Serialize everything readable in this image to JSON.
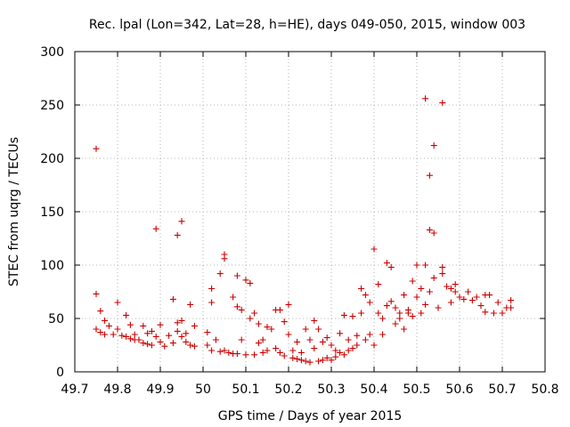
{
  "chart_data": {
    "type": "scatter",
    "title": "Rec. lpal (Lon=342, Lat=28, h=HE), days 049-050, 2015, window 003",
    "xlabel": "GPS time / Days of year 2015",
    "ylabel": "STEC from uqrg / TECUs",
    "xlim": [
      49.7,
      50.8
    ],
    "ylim": [
      0,
      300
    ],
    "xticks": [
      49.7,
      49.8,
      49.9,
      50.0,
      50.1,
      50.2,
      50.3,
      50.4,
      50.5,
      50.6,
      50.7,
      50.8
    ],
    "xtick_labels": [
      "49.7",
      "49.8",
      "49.9",
      "50",
      "50.1",
      "50.2",
      "50.3",
      "50.4",
      "50.5",
      "50.6",
      "50.7",
      "50.8"
    ],
    "yticks": [
      0,
      50,
      100,
      150,
      200,
      250,
      300
    ],
    "ytick_labels": [
      "0",
      "50",
      "100",
      "150",
      "200",
      "250",
      "300"
    ],
    "grid": true,
    "marker": "+",
    "series_color": "#cc0000",
    "points": [
      [
        49.75,
        209
      ],
      [
        49.75,
        73
      ],
      [
        49.75,
        40
      ],
      [
        49.76,
        57
      ],
      [
        49.76,
        37
      ],
      [
        49.77,
        48
      ],
      [
        49.77,
        35
      ],
      [
        49.78,
        43
      ],
      [
        49.79,
        35
      ],
      [
        49.8,
        65
      ],
      [
        49.8,
        40
      ],
      [
        49.81,
        34
      ],
      [
        49.82,
        53
      ],
      [
        49.82,
        33
      ],
      [
        49.83,
        44
      ],
      [
        49.83,
        31
      ],
      [
        49.84,
        35
      ],
      [
        49.84,
        30
      ],
      [
        49.85,
        30
      ],
      [
        49.86,
        43
      ],
      [
        49.86,
        27
      ],
      [
        49.87,
        36
      ],
      [
        49.87,
        26
      ],
      [
        49.88,
        38
      ],
      [
        49.88,
        25
      ],
      [
        49.89,
        134
      ],
      [
        49.89,
        33
      ],
      [
        49.9,
        44
      ],
      [
        49.9,
        28
      ],
      [
        49.91,
        24
      ],
      [
        49.92,
        34
      ],
      [
        49.93,
        68
      ],
      [
        49.93,
        27
      ],
      [
        49.94,
        128
      ],
      [
        49.94,
        46
      ],
      [
        49.94,
        38
      ],
      [
        49.95,
        141
      ],
      [
        49.95,
        48
      ],
      [
        49.95,
        33
      ],
      [
        49.96,
        36
      ],
      [
        49.96,
        28
      ],
      [
        49.97,
        63
      ],
      [
        49.97,
        25
      ],
      [
        49.98,
        43
      ],
      [
        49.98,
        24
      ],
      [
        50.01,
        37
      ],
      [
        50.01,
        25
      ],
      [
        50.02,
        78
      ],
      [
        50.02,
        65
      ],
      [
        50.02,
        20
      ],
      [
        50.03,
        30
      ],
      [
        50.04,
        92
      ],
      [
        50.04,
        19
      ],
      [
        50.05,
        110
      ],
      [
        50.05,
        106
      ],
      [
        50.05,
        20
      ],
      [
        50.06,
        18
      ],
      [
        50.07,
        70
      ],
      [
        50.07,
        17
      ],
      [
        50.08,
        90
      ],
      [
        50.08,
        61
      ],
      [
        50.08,
        17
      ],
      [
        50.09,
        58
      ],
      [
        50.09,
        30
      ],
      [
        50.1,
        86
      ],
      [
        50.1,
        16
      ],
      [
        50.11,
        83
      ],
      [
        50.11,
        50
      ],
      [
        50.12,
        55
      ],
      [
        50.12,
        16
      ],
      [
        50.13,
        45
      ],
      [
        50.13,
        27
      ],
      [
        50.14,
        30
      ],
      [
        50.14,
        18
      ],
      [
        50.15,
        42
      ],
      [
        50.15,
        20
      ],
      [
        50.16,
        40
      ],
      [
        50.17,
        58
      ],
      [
        50.17,
        22
      ],
      [
        50.18,
        58
      ],
      [
        50.18,
        18
      ],
      [
        50.19,
        47
      ],
      [
        50.19,
        15
      ],
      [
        50.2,
        63
      ],
      [
        50.2,
        35
      ],
      [
        50.21,
        20
      ],
      [
        50.21,
        13
      ],
      [
        50.22,
        28
      ],
      [
        50.22,
        12
      ],
      [
        50.23,
        18
      ],
      [
        50.23,
        11
      ],
      [
        50.24,
        40
      ],
      [
        50.24,
        10
      ],
      [
        50.25,
        30
      ],
      [
        50.25,
        9
      ],
      [
        50.26,
        48
      ],
      [
        50.26,
        22
      ],
      [
        50.27,
        40
      ],
      [
        50.27,
        10
      ],
      [
        50.28,
        28
      ],
      [
        50.28,
        11
      ],
      [
        50.29,
        32
      ],
      [
        50.29,
        13
      ],
      [
        50.3,
        25
      ],
      [
        50.3,
        11
      ],
      [
        50.31,
        20
      ],
      [
        50.31,
        14
      ],
      [
        50.32,
        36
      ],
      [
        50.32,
        18
      ],
      [
        50.33,
        53
      ],
      [
        50.33,
        16
      ],
      [
        50.34,
        30
      ],
      [
        50.34,
        20
      ],
      [
        50.35,
        52
      ],
      [
        50.35,
        22
      ],
      [
        50.36,
        34
      ],
      [
        50.36,
        25
      ],
      [
        50.37,
        78
      ],
      [
        50.37,
        55
      ],
      [
        50.38,
        72
      ],
      [
        50.38,
        30
      ],
      [
        50.39,
        65
      ],
      [
        50.39,
        35
      ],
      [
        50.4,
        115
      ],
      [
        50.4,
        25
      ],
      [
        50.41,
        82
      ],
      [
        50.41,
        55
      ],
      [
        50.42,
        50
      ],
      [
        50.42,
        35
      ],
      [
        50.43,
        102
      ],
      [
        50.43,
        62
      ],
      [
        50.44,
        98
      ],
      [
        50.44,
        66
      ],
      [
        50.45,
        60
      ],
      [
        50.45,
        45
      ],
      [
        50.46,
        55
      ],
      [
        50.46,
        50
      ],
      [
        50.47,
        72
      ],
      [
        50.47,
        40
      ],
      [
        50.48,
        58
      ],
      [
        50.48,
        55
      ],
      [
        50.49,
        85
      ],
      [
        50.49,
        52
      ],
      [
        50.5,
        100
      ],
      [
        50.5,
        70
      ],
      [
        50.51,
        78
      ],
      [
        50.51,
        55
      ],
      [
        50.52,
        256
      ],
      [
        50.52,
        100
      ],
      [
        50.52,
        63
      ],
      [
        50.53,
        184
      ],
      [
        50.53,
        133
      ],
      [
        50.53,
        75
      ],
      [
        50.54,
        212
      ],
      [
        50.54,
        130
      ],
      [
        50.54,
        88
      ],
      [
        50.55,
        60
      ],
      [
        50.56,
        252
      ],
      [
        50.56,
        98
      ],
      [
        50.56,
        92
      ],
      [
        50.57,
        80
      ],
      [
        50.58,
        78
      ],
      [
        50.58,
        65
      ],
      [
        50.59,
        82
      ],
      [
        50.59,
        75
      ],
      [
        50.6,
        70
      ],
      [
        50.61,
        68
      ],
      [
        50.62,
        75
      ],
      [
        50.63,
        67
      ],
      [
        50.64,
        70
      ],
      [
        50.65,
        62
      ],
      [
        50.66,
        72
      ],
      [
        50.66,
        56
      ],
      [
        50.67,
        72
      ],
      [
        50.68,
        55
      ],
      [
        50.69,
        65
      ],
      [
        50.7,
        55
      ],
      [
        50.71,
        60
      ],
      [
        50.72,
        67
      ],
      [
        50.72,
        60
      ]
    ]
  }
}
